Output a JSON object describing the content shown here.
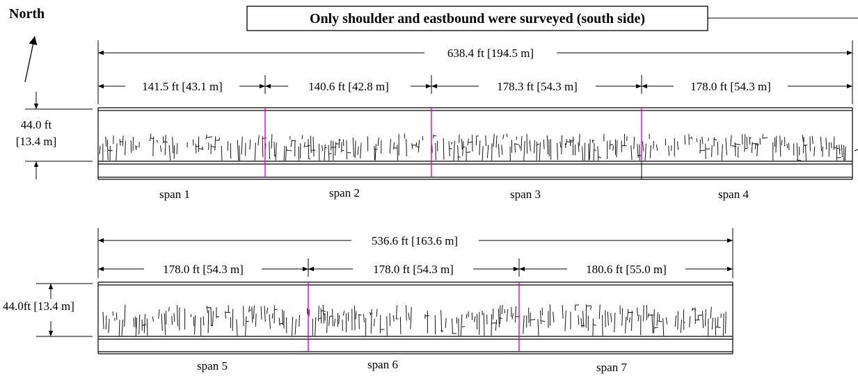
{
  "north_label": "North",
  "note": "Only shoulder and eastbound were surveyed (south side)",
  "colors": {
    "joint": "#e000e0",
    "line": "#000000"
  },
  "deck_top": {
    "total_length": "638.4 ft [194.5 m]",
    "width_label_line1": "44.0 ft",
    "width_label_line2": "[13.4 m]",
    "spans": [
      {
        "name": "span 1",
        "length": "141.5 ft [43.1 m]"
      },
      {
        "name": "span 2",
        "length": "140.6 ft [42.8 m]"
      },
      {
        "name": "span 3",
        "length": "178.3 ft [54.3 m]"
      },
      {
        "name": "span 4",
        "length": "178.0 ft [54.3 m]"
      }
    ]
  },
  "deck_bottom": {
    "total_length": "536.6 ft [163.6 m]",
    "width_label": "44.0ft [13.4 m]",
    "spans": [
      {
        "name": "span 5",
        "length": "178.0 ft [54.3 m]"
      },
      {
        "name": "span 6",
        "length": "178.0 ft [54.3 m]"
      },
      {
        "name": "span 7",
        "length": "180.6 ft [55.0 m]"
      }
    ]
  }
}
